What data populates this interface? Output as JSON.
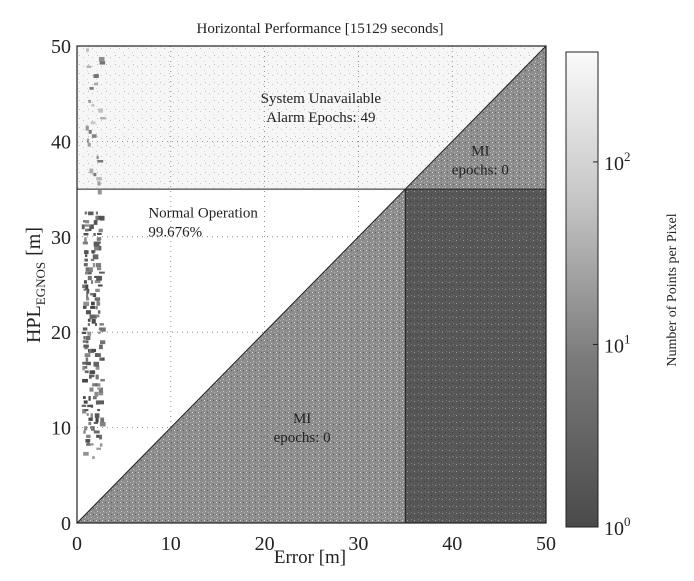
{
  "chart_data": {
    "type": "heatmap",
    "title": "Horizontal Performance [15129 seconds]",
    "xlabel": "Error [m]",
    "ylabel": "HPL",
    "ylabel_subscript": "EGNOS",
    "ylabel_unit": "[m]",
    "xlim": [
      0,
      50
    ],
    "ylim": [
      0,
      50
    ],
    "x_ticks": [
      0,
      10,
      20,
      30,
      40,
      50
    ],
    "y_ticks": [
      0,
      10,
      20,
      30,
      40,
      50
    ],
    "grid": true,
    "alarm_limit": 35,
    "regions": [
      {
        "name": "unavailable",
        "label_lines": [
          "System Unavailable",
          "Alarm Epochs: 49"
        ],
        "label_at": [
          26,
          44
        ]
      },
      {
        "name": "normal",
        "label_lines": [
          "Normal Operation",
          "99.676%"
        ],
        "label_at": [
          14,
          32
        ]
      },
      {
        "name": "mi-upper",
        "label_lines": [
          "MI",
          "epochs: 0"
        ],
        "label_at": [
          43,
          38.5
        ]
      },
      {
        "name": "mi-lower",
        "label_lines": [
          "MI",
          "epochs: 0"
        ],
        "label_at": [
          24,
          10.5
        ]
      }
    ],
    "data_band": {
      "x_range": [
        0.5,
        2.5
      ],
      "y_range": [
        7,
        50
      ],
      "dense_y_range": [
        8,
        33
      ]
    },
    "colorbar": {
      "label": "Number of Points per Pixel",
      "scale": "log",
      "range": [
        1,
        400
      ],
      "ticks": [
        {
          "value": 1,
          "base": "10",
          "exp": "0"
        },
        {
          "value": 10,
          "base": "10",
          "exp": "1"
        },
        {
          "value": 100,
          "base": "10",
          "exp": "2"
        }
      ]
    },
    "colors": {
      "normal_region": "#ffffff",
      "mi_region": "#8a8a8a",
      "mi_region_dark": "#5a5a5a",
      "unavailable_region": "#eeeeee",
      "ink": "#222222"
    }
  }
}
